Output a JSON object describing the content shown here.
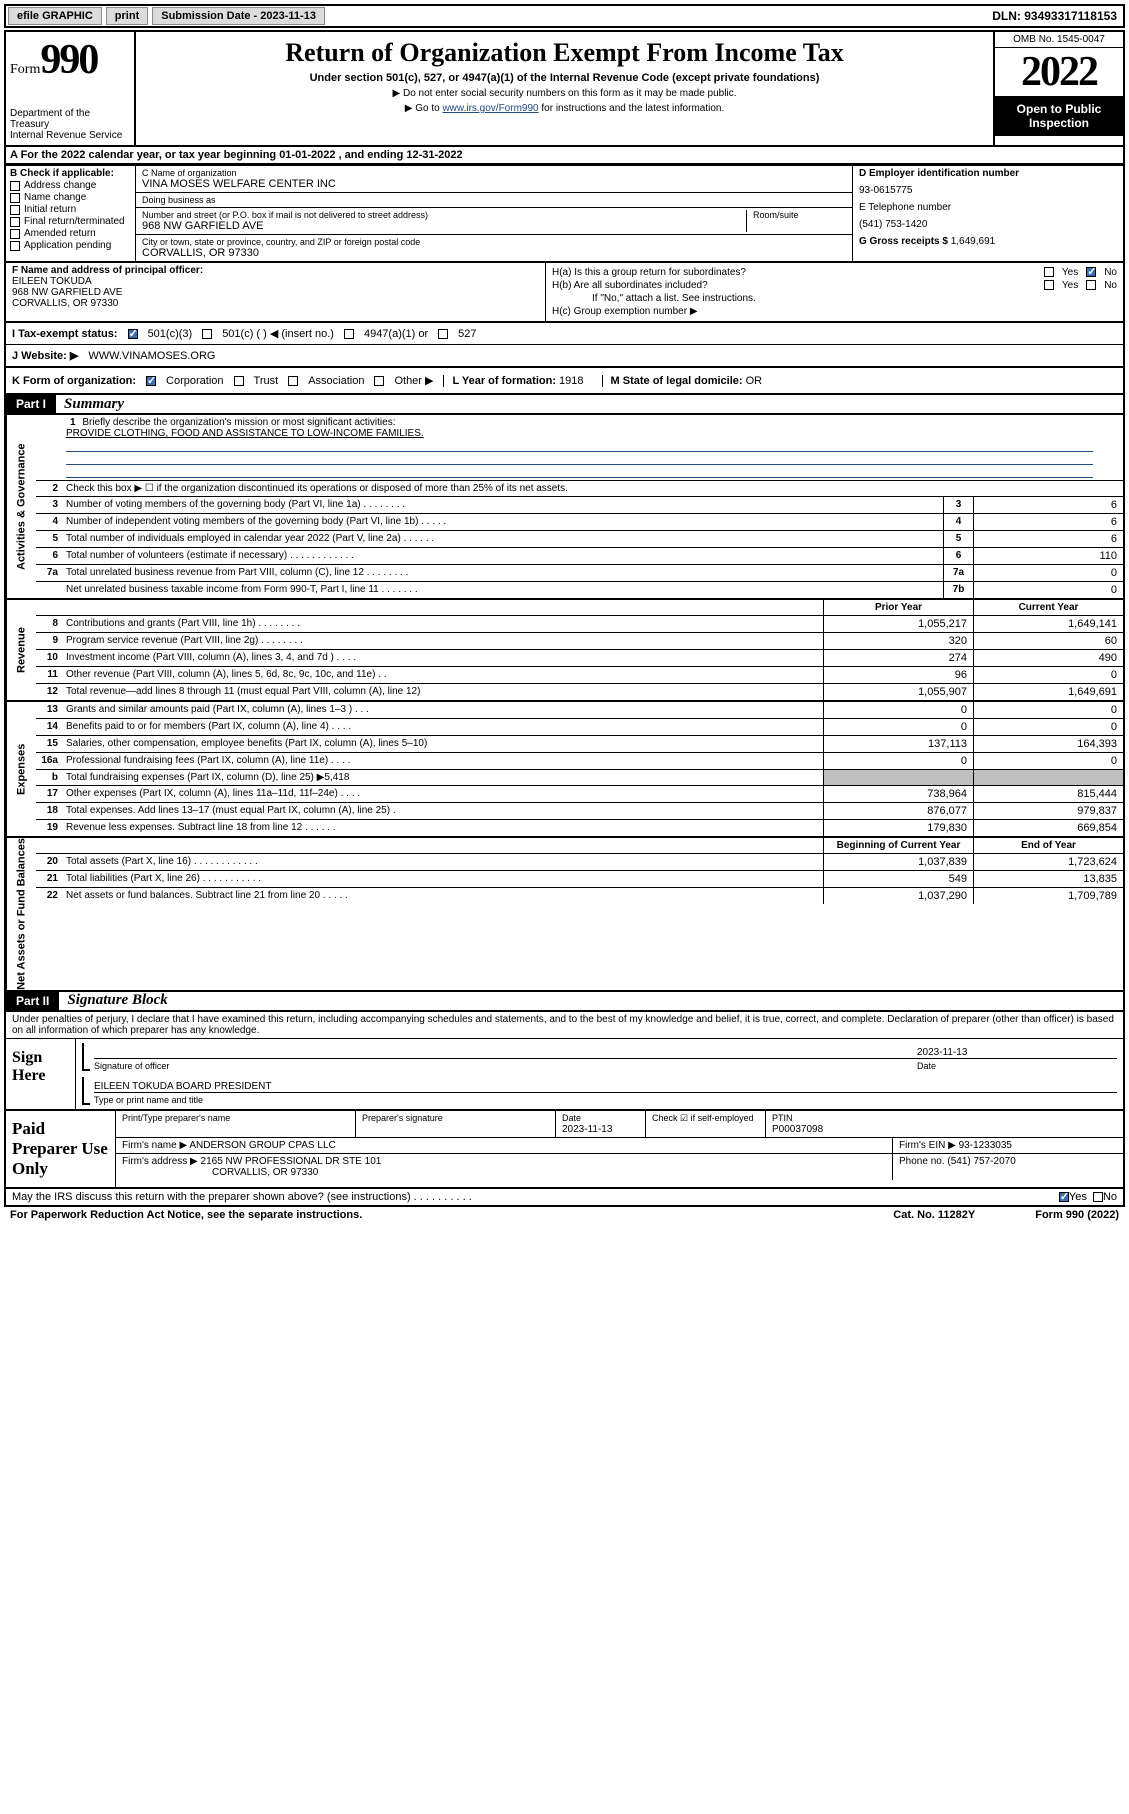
{
  "topbar": {
    "efile": "efile GRAPHIC",
    "print": "print",
    "subdate_label": "Submission Date - ",
    "subdate": "2023-11-13",
    "dln": "DLN: 93493317118153"
  },
  "header": {
    "form_word": "Form",
    "form_num": "990",
    "dept": "Department of the Treasury\nInternal Revenue Service",
    "title": "Return of Organization Exempt From Income Tax",
    "sub1": "Under section 501(c), 527, or 4947(a)(1) of the Internal Revenue Code (except private foundations)",
    "sub2": "▶ Do not enter social security numbers on this form as it may be made public.",
    "sub3_pre": "▶ Go to ",
    "sub3_link": "www.irs.gov/Form990",
    "sub3_post": " for instructions and the latest information.",
    "omb": "OMB No. 1545-0047",
    "year": "2022",
    "openpub": "Open to Public Inspection"
  },
  "A": {
    "text": "A For the 2022 calendar year, or tax year beginning 01-01-2022   , and ending 12-31-2022"
  },
  "B": {
    "label": "B Check if applicable:",
    "opts": [
      "Address change",
      "Name change",
      "Initial return",
      "Final return/terminated",
      "Amended return",
      "Application pending"
    ]
  },
  "C": {
    "name_label": "C Name of organization",
    "name": "VINA MOSES WELFARE CENTER INC",
    "dba_label": "Doing business as",
    "dba": "",
    "addr_label": "Number and street (or P.O. box if mail is not delivered to street address)",
    "room_label": "Room/suite",
    "addr": "968 NW GARFIELD AVE",
    "city_label": "City or town, state or province, country, and ZIP or foreign postal code",
    "city": "CORVALLIS, OR  97330"
  },
  "D": {
    "label": "D Employer identification number",
    "ein": "93-0615775",
    "E_label": "E Telephone number",
    "phone": "(541) 753-1420",
    "G_label": "G Gross receipts $ ",
    "gross": "1,649,691"
  },
  "F": {
    "label": "F Name and address of principal officer:",
    "name": "EILEEN TOKUDA",
    "addr1": "968 NW GARFIELD AVE",
    "addr2": "CORVALLIS, OR  97330"
  },
  "H": {
    "a": "H(a)  Is this a group return for subordinates?",
    "b": "H(b)  Are all subordinates included?",
    "bnote": "If \"No,\" attach a list. See instructions.",
    "c": "H(c)  Group exemption number ▶"
  },
  "I": {
    "label": "I   Tax-exempt status:",
    "o1": "501(c)(3)",
    "o2": "501(c) (  ) ◀ (insert no.)",
    "o3": "4947(a)(1) or",
    "o4": "527"
  },
  "J": {
    "label": "J   Website: ▶  ",
    "val": "WWW.VINAMOSES.ORG"
  },
  "K": {
    "label": "K Form of organization:",
    "o1": "Corporation",
    "o2": "Trust",
    "o3": "Association",
    "o4": "Other ▶"
  },
  "L": {
    "label": "L Year of formation: ",
    "val": "1918"
  },
  "M": {
    "label": "M State of legal domicile: ",
    "val": "OR"
  },
  "part1": {
    "bar": "Part I",
    "title": "Summary"
  },
  "vtabs": {
    "gov": "Activities & Governance",
    "rev": "Revenue",
    "exp": "Expenses",
    "net": "Net Assets or Fund Balances"
  },
  "s1": {
    "n": "1",
    "d": "Briefly describe the organization's mission or most significant activities:",
    "mission": "PROVIDE CLOTHING, FOOD AND ASSISTANCE TO LOW-INCOME FAMILIES."
  },
  "s2": {
    "n": "2",
    "d": "Check this box ▶ ☐  if the organization discontinued its operations or disposed of more than 25% of its net assets."
  },
  "gov_lines": [
    {
      "n": "3",
      "d": "Number of voting members of the governing body (Part VI, line 1a)   .    .    .    .    .    .    .    .",
      "b": "3",
      "v": "6"
    },
    {
      "n": "4",
      "d": "Number of independent voting members of the governing body (Part VI, line 1b)    .    .    .    .    .",
      "b": "4",
      "v": "6"
    },
    {
      "n": "5",
      "d": "Total number of individuals employed in calendar year 2022 (Part V, line 2a)    .    .    .    .    .    .",
      "b": "5",
      "v": "6"
    },
    {
      "n": "6",
      "d": "Total number of volunteers (estimate if necessary)    .    .    .    .    .    .    .    .    .    .    .    .",
      "b": "6",
      "v": "110"
    },
    {
      "n": "7a",
      "d": "Total unrelated business revenue from Part VIII, column (C), line 12   .    .    .    .    .    .    .    .",
      "b": "7a",
      "v": "0"
    },
    {
      "n": "",
      "d": "Net unrelated business taxable income from Form 990-T, Part I, line 11    .    .    .    .    .    .    .",
      "b": "7b",
      "v": "0"
    }
  ],
  "colhdr": {
    "prior": "Prior Year",
    "curr": "Current Year",
    "beg": "Beginning of Current Year",
    "end": "End of Year"
  },
  "rev_lines": [
    {
      "n": "8",
      "d": "Contributions and grants (Part VIII, line 1h)    .    .    .    .    .    .    .    .",
      "p": "1,055,217",
      "c": "1,649,141"
    },
    {
      "n": "9",
      "d": "Program service revenue (Part VIII, line 2g)    .    .    .    .    .    .    .    .",
      "p": "320",
      "c": "60"
    },
    {
      "n": "10",
      "d": "Investment income (Part VIII, column (A), lines 3, 4, and 7d )    .    .    .    .",
      "p": "274",
      "c": "490"
    },
    {
      "n": "11",
      "d": "Other revenue (Part VIII, column (A), lines 5, 6d, 8c, 9c, 10c, and 11e)    .    .",
      "p": "96",
      "c": "0"
    },
    {
      "n": "12",
      "d": "Total revenue—add lines 8 through 11 (must equal Part VIII, column (A), line 12)",
      "p": "1,055,907",
      "c": "1,649,691"
    }
  ],
  "exp_lines": [
    {
      "n": "13",
      "d": "Grants and similar amounts paid (Part IX, column (A), lines 1–3 )    .    .    .",
      "p": "0",
      "c": "0"
    },
    {
      "n": "14",
      "d": "Benefits paid to or for members (Part IX, column (A), line 4)    .    .    .    .",
      "p": "0",
      "c": "0"
    },
    {
      "n": "15",
      "d": "Salaries, other compensation, employee benefits (Part IX, column (A), lines 5–10)",
      "p": "137,113",
      "c": "164,393"
    },
    {
      "n": "16a",
      "d": "Professional fundraising fees (Part IX, column (A), line 11e)    .    .    .    .",
      "p": "0",
      "c": "0"
    },
    {
      "n": "b",
      "d": "Total fundraising expenses (Part IX, column (D), line 25) ▶5,418",
      "p": "",
      "c": "",
      "shade": true
    },
    {
      "n": "17",
      "d": "Other expenses (Part IX, column (A), lines 11a–11d, 11f–24e)    .    .    .    .",
      "p": "738,964",
      "c": "815,444"
    },
    {
      "n": "18",
      "d": "Total expenses. Add lines 13–17 (must equal Part IX, column (A), line 25)    .",
      "p": "876,077",
      "c": "979,837"
    },
    {
      "n": "19",
      "d": "Revenue less expenses. Subtract line 18 from line 12    .    .    .    .    .    .",
      "p": "179,830",
      "c": "669,854"
    }
  ],
  "net_lines": [
    {
      "n": "20",
      "d": "Total assets (Part X, line 16)    .    .    .    .    .    .    .    .    .    .    .    .",
      "p": "1,037,839",
      "c": "1,723,624"
    },
    {
      "n": "21",
      "d": "Total liabilities (Part X, line 26)    .    .    .    .    .    .    .    .    .    .    .",
      "p": "549",
      "c": "13,835"
    },
    {
      "n": "22",
      "d": "Net assets or fund balances. Subtract line 21 from line 20    .    .    .    .    .",
      "p": "1,037,290",
      "c": "1,709,789"
    }
  ],
  "part2": {
    "bar": "Part II",
    "title": "Signature Block"
  },
  "sigtext": "Under penalties of perjury, I declare that I have examined this return, including accompanying schedules and statements, and to the best of my knowledge and belief, it is true, correct, and complete. Declaration of preparer (other than officer) is based on all information of which preparer has any knowledge.",
  "sign": {
    "here": "Sign Here",
    "sig_label": "Signature of officer",
    "date_label": "Date",
    "date": "2023-11-13",
    "name": "EILEEN TOKUDA  BOARD PRESIDENT",
    "name_label": "Type or print name and title"
  },
  "prep": {
    "label": "Paid Preparer Use Only",
    "h1": "Print/Type preparer's name",
    "h2": "Preparer's signature",
    "h3": "Date",
    "date": "2023-11-13",
    "h4": "Check ☑ if self-employed",
    "h5": "PTIN",
    "ptin": "P00037098",
    "firm_label": "Firm's name     ▶ ",
    "firm": "ANDERSON GROUP CPAS LLC",
    "ein_label": "Firm's EIN ▶ ",
    "ein": "93-1233035",
    "addr_label": "Firm's address ▶ ",
    "addr1": "2165 NW PROFESSIONAL DR STE 101",
    "addr2": "CORVALLIS, OR  97330",
    "phone_label": "Phone no. ",
    "phone": "(541) 757-2070"
  },
  "footer": {
    "q": "May the IRS discuss this return with the preparer shown above? (see instructions)    .    .    .    .    .    .    .    .    .    .",
    "paperwork": "For Paperwork Reduction Act Notice, see the separate instructions.",
    "cat": "Cat. No. 11282Y",
    "form": "Form 990 (2022)"
  }
}
